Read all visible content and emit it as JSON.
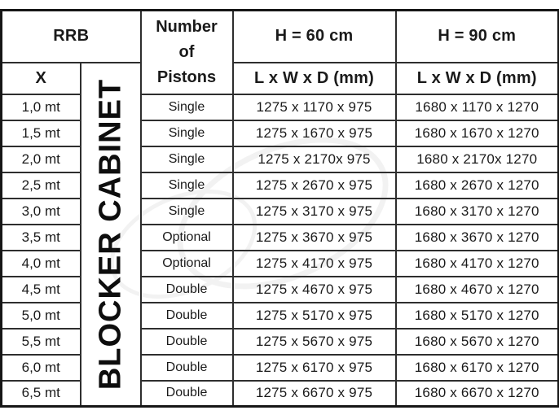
{
  "table": {
    "header": {
      "rrb": "RRB",
      "x_label": "X",
      "pistons_line1": "Number",
      "pistons_line2": "of",
      "pistons_line3": "Pistons",
      "h60": "H = 60 cm",
      "h90": "H = 90 cm",
      "dims60": "L x W x D (mm)",
      "dims90": "L x W x D (mm)",
      "cabinet": "BLOCKER CABINET"
    },
    "rows": [
      {
        "x": "1,0 mt",
        "pistons": "Single",
        "h60": "1275 x 1170 x 975",
        "h90": "1680 x 1170 x 1270"
      },
      {
        "x": "1,5 mt",
        "pistons": "Single",
        "h60": "1275 x 1670 x 975",
        "h90": "1680 x 1670 x 1270"
      },
      {
        "x": "2,0 mt",
        "pistons": "Single",
        "h60": "1275 x 2170x 975",
        "h90": "1680 x 2170x 1270"
      },
      {
        "x": "2,5 mt",
        "pistons": "Single",
        "h60": "1275 x 2670 x 975",
        "h90": "1680 x 2670 x 1270"
      },
      {
        "x": "3,0 mt",
        "pistons": "Single",
        "h60": "1275 x 3170 x 975",
        "h90": "1680 x 3170 x 1270"
      },
      {
        "x": "3,5 mt",
        "pistons": "Optional",
        "h60": "1275 x 3670 x 975",
        "h90": "1680 x 3670 x 1270"
      },
      {
        "x": "4,0 mt",
        "pistons": "Optional",
        "h60": "1275 x 4170 x 975",
        "h90": "1680 x 4170 x 1270"
      },
      {
        "x": "4,5 mt",
        "pistons": "Double",
        "h60": "1275 x 4670 x 975",
        "h90": "1680 x 4670 x 1270"
      },
      {
        "x": "5,0 mt",
        "pistons": "Double",
        "h60": "1275 x 5170 x 975",
        "h90": "1680 x 5170 x 1270"
      },
      {
        "x": "5,5 mt",
        "pistons": "Double",
        "h60": "1275 x 5670 x 975",
        "h90": "1680 x 5670 x 1270"
      },
      {
        "x": "6,0 mt",
        "pistons": "Double",
        "h60": "1275 x 6170 x 975",
        "h90": "1680 x 6170 x 1270"
      },
      {
        "x": "6,5 mt",
        "pistons": "Double",
        "h60": "1275 x 6670 x 975",
        "h90": "1680 x 6670 x 1270"
      }
    ],
    "colors": {
      "text": "#1a1a1a",
      "border_outer": "#161616",
      "border_inner": "#2e2e2e",
      "background": "#ffffff"
    }
  }
}
